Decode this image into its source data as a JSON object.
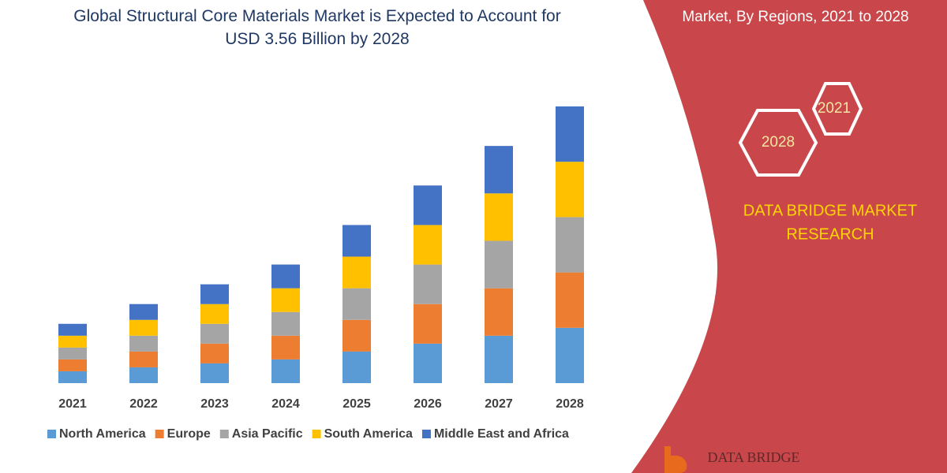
{
  "chart_data": {
    "type": "stacked-bar",
    "title": "Global Structural Core Materials Market is Expected to Account for USD 3.56 Billion by 2028",
    "categories": [
      "2021",
      "2022",
      "2023",
      "2024",
      "2025",
      "2026",
      "2027",
      "2028"
    ],
    "series": [
      {
        "name": "North America",
        "color": "#5b9bd5",
        "values": [
          15,
          20,
          25,
          30,
          40,
          50,
          60,
          70
        ]
      },
      {
        "name": "Europe",
        "color": "#ed7d31",
        "values": [
          15,
          20,
          25,
          30,
          40,
          50,
          60,
          70
        ]
      },
      {
        "name": "Asia Pacific",
        "color": "#a5a5a5",
        "values": [
          15,
          20,
          25,
          30,
          40,
          50,
          60,
          70
        ]
      },
      {
        "name": "South America",
        "color": "#ffc000",
        "values": [
          15,
          20,
          25,
          30,
          40,
          50,
          60,
          70
        ]
      },
      {
        "name": "Middle East and Africa",
        "color": "#4472c4",
        "values": [
          15,
          20,
          25,
          30,
          40,
          50,
          60,
          70
        ]
      }
    ],
    "legend": "bottom"
  },
  "panel": {
    "heading": "Market, By Regions, 2021 to 2028",
    "hex_labels": [
      "2021",
      "2028"
    ],
    "brand_lines": [
      "DATA BRIDGE MARKET",
      "RESEARCH"
    ],
    "logo": "DATA BRIDGE"
  }
}
